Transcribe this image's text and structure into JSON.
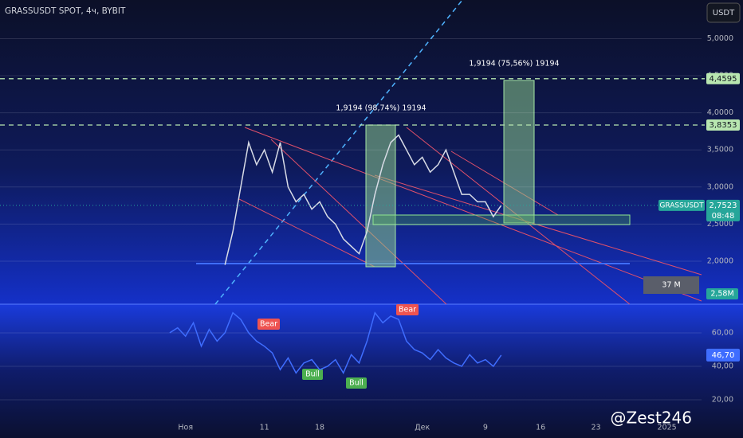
{
  "header": {
    "symbol": "GRASSUSDT SPOT, 4ч, BYBIT",
    "currency": "USDT"
  },
  "watermark": "@Zest246",
  "chart_data": [
    {
      "type": "line",
      "categories": [
        null,
        null,
        null,
        "Ноя",
        null,
        null,
        null,
        null,
        null,
        null,
        null,
        null,
        null,
        "11",
        null,
        null,
        null,
        null,
        null,
        null,
        "18",
        null,
        null,
        null,
        null,
        null,
        null,
        null,
        null,
        null,
        null,
        null,
        null,
        "Дек",
        null,
        null,
        null,
        null,
        null,
        null,
        null,
        "9",
        null,
        null,
        null,
        null,
        null,
        null,
        "16",
        null,
        null,
        null,
        null,
        null,
        null,
        "23",
        null,
        null,
        null,
        null,
        null,
        null,
        null,
        null,
        "2025",
        null,
        null,
        null
      ],
      "series": [
        {
          "name": "GRASSUSDT",
          "color": "#d8dce6",
          "values": [
            null,
            null,
            null,
            null,
            null,
            null,
            null,
            null,
            1.95,
            2.4,
            3.0,
            3.6,
            3.3,
            3.5,
            3.2,
            3.6,
            3.0,
            2.8,
            2.9,
            2.7,
            2.8,
            2.6,
            2.5,
            2.3,
            2.2,
            2.1,
            2.4,
            2.9,
            3.3,
            3.6,
            3.7,
            3.5,
            3.3,
            3.4,
            3.2,
            3.3,
            3.5,
            3.2,
            2.9,
            2.9,
            2.8,
            2.8,
            2.6,
            2.7523,
            null,
            null,
            null,
            null,
            null,
            null,
            null,
            null,
            null,
            null,
            null,
            null,
            null,
            null,
            null,
            null,
            null,
            null,
            null,
            null,
            null,
            null,
            null,
            null
          ]
        }
      ],
      "ylim": [
        1.42,
        5.52
      ],
      "yticks": [
        {
          "value": 5,
          "label": "5,0000"
        },
        {
          "value": 4.5,
          "label": "4,5000"
        },
        {
          "value": 4,
          "label": "4,0000"
        },
        {
          "value": 3.5,
          "label": "3,5000"
        },
        {
          "value": 3,
          "label": "3,0000"
        },
        {
          "value": 2.5,
          "label": "2,5000"
        },
        {
          "value": 2,
          "label": "2,0000"
        }
      ],
      "grid": true,
      "levels": [
        {
          "value": 4.4595,
          "label": "4,4595"
        },
        {
          "value": 3.8353,
          "label": "3,8353"
        }
      ],
      "current_price": {
        "value": 2.7523,
        "label": "2,7523",
        "name": "GRASSUSDT",
        "countdown": "08:48"
      },
      "annotations": {
        "measure_high": "1,9194 (75,56%) 19194",
        "measure_low": "1,9194 (98,74%) 19194",
        "range_volume": "37 M",
        "volume": "2,58M"
      }
    },
    {
      "type": "line",
      "categories": [
        null,
        null,
        null,
        "Ноя",
        null,
        null,
        null,
        null,
        null,
        null,
        null,
        null,
        null,
        "11",
        null,
        null,
        null,
        null,
        null,
        null,
        "18",
        null,
        null,
        null,
        null,
        null,
        null,
        null,
        null,
        null,
        null,
        null,
        null,
        "Дек",
        null,
        null,
        null,
        null,
        null,
        null,
        null,
        "9",
        null,
        null,
        null,
        null,
        null,
        null,
        "16",
        null,
        null,
        null,
        null,
        null,
        null,
        "23",
        null,
        null,
        null,
        null,
        null,
        null,
        null,
        null,
        "2025",
        null,
        null,
        null
      ],
      "series": [
        {
          "name": "RSI",
          "color": "#3f6dff",
          "values": [
            null,
            60,
            63,
            58,
            66,
            52,
            62,
            55,
            60,
            72,
            68,
            60,
            55,
            52,
            48,
            38,
            45,
            36,
            42,
            44,
            38,
            40,
            44,
            36,
            47,
            42,
            55,
            72,
            66,
            70,
            68,
            55,
            50,
            48,
            44,
            50,
            45,
            42,
            40,
            47,
            42,
            44,
            40,
            46.7,
            null,
            null,
            null,
            null,
            null,
            null,
            null,
            null,
            null,
            null,
            null,
            null,
            null,
            null,
            null,
            null,
            null,
            null,
            null,
            null,
            null,
            null,
            null,
            null
          ]
        }
      ],
      "ylim": [
        4.3,
        77.1
      ],
      "yticks": [
        {
          "value": 60,
          "label": "60,00"
        },
        {
          "value": 40,
          "label": "40,00"
        },
        {
          "value": 20,
          "label": "20,00"
        }
      ],
      "grid": true,
      "current_value": {
        "value": 46.7,
        "label": "46,70"
      },
      "signals": [
        "Bear",
        "Bear",
        "Bull",
        "Bull"
      ]
    }
  ]
}
